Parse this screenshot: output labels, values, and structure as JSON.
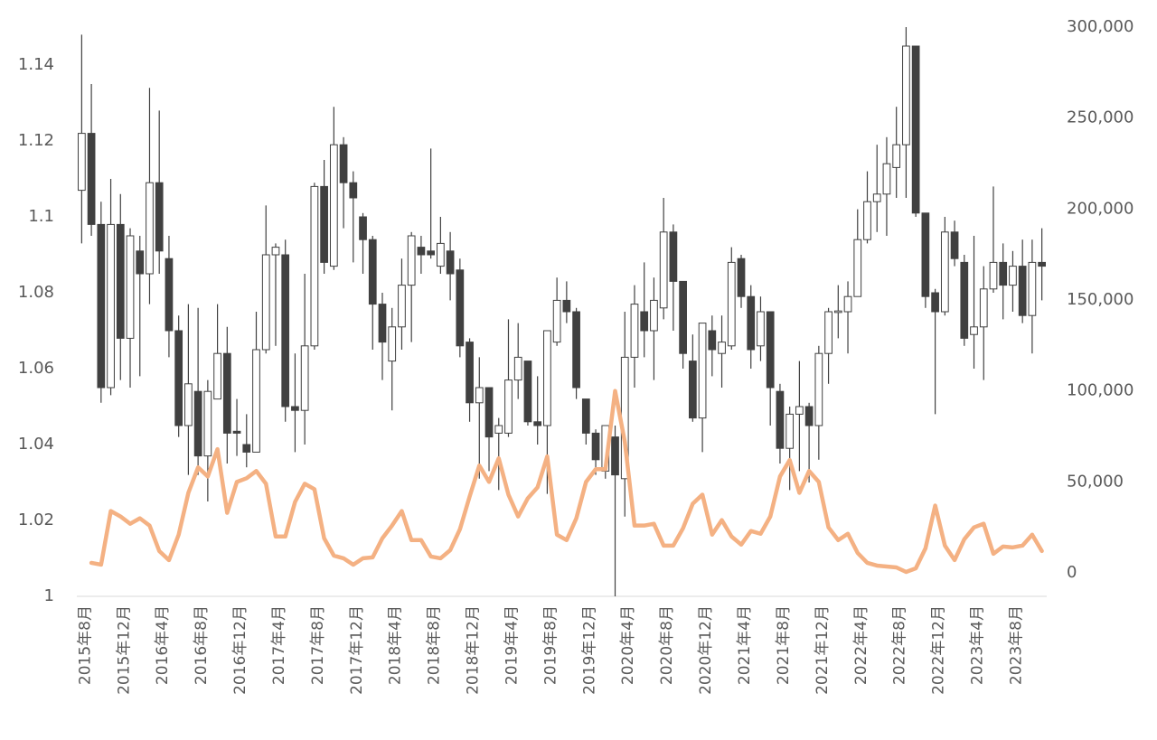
{
  "chart_data": {
    "type": "candlestick",
    "categories": [
      "2015年8月",
      null,
      null,
      null,
      "2015年12月",
      null,
      null,
      null,
      "2016年4月",
      null,
      null,
      null,
      "2016年8月",
      null,
      null,
      null,
      "2016年12月",
      null,
      null,
      null,
      "2017年4月",
      null,
      null,
      null,
      "2017年8月",
      null,
      null,
      null,
      "2017年12月",
      null,
      null,
      null,
      "2018年4月",
      null,
      null,
      null,
      "2018年8月",
      null,
      null,
      null,
      "2018年12月",
      null,
      null,
      null,
      "2019年4月",
      null,
      null,
      null,
      "2019年8月",
      null,
      null,
      null,
      "2019年12月",
      null,
      null,
      null,
      "2020年4月",
      null,
      null,
      null,
      "2020年8月",
      null,
      null,
      null,
      "2020年12月",
      null,
      null,
      null,
      "2021年4月",
      null,
      null,
      null,
      "2021年8月",
      null,
      null,
      null,
      "2021年12月",
      null,
      null,
      null,
      "2022年4月",
      null,
      null,
      null,
      "2022年8月",
      null,
      null,
      null,
      "2022年12月",
      null,
      null,
      null,
      "2023年4月",
      null,
      null,
      null,
      "2023年8月",
      null,
      null,
      null
    ],
    "open": [
      1.107,
      1.122,
      1.098,
      1.055,
      1.098,
      1.068,
      1.091,
      1.085,
      1.109,
      1.089,
      1.07,
      1.045,
      1.054,
      1.037,
      1.052,
      1.064,
      1.0435,
      1.04,
      1.038,
      1.065,
      1.09,
      1.09,
      1.05,
      1.049,
      1.066,
      1.108,
      1.087,
      1.119,
      1.109,
      1.1,
      1.094,
      1.077,
      1.062,
      1.071,
      1.082,
      1.092,
      1.091,
      1.087,
      1.091,
      1.086,
      1.067,
      1.051,
      1.055,
      1.043,
      1.043,
      1.057,
      1.062,
      1.046,
      1.045,
      1.067,
      1.078,
      1.075,
      1.052,
      1.043,
      1.033,
      1.042,
      1.031,
      1.063,
      1.075,
      1.07,
      1.076,
      1.096,
      1.083,
      1.062,
      1.047,
      1.07,
      1.064,
      1.066,
      1.089,
      1.079,
      1.066,
      1.075,
      1.054,
      1.039,
      1.048,
      1.05,
      1.045,
      1.064,
      1.0748,
      1.075,
      1.079,
      1.094,
      1.104,
      1.106,
      1.113,
      1.119,
      1.145,
      1.101,
      1.08,
      1.075,
      1.096,
      1.088,
      1.069,
      1.071,
      1.081,
      1.088,
      1.082,
      1.087,
      1.074,
      1.088
    ],
    "high": [
      1.148,
      1.135,
      1.104,
      1.11,
      1.106,
      1.097,
      1.095,
      1.134,
      1.128,
      1.095,
      1.074,
      1.077,
      1.076,
      1.057,
      1.077,
      1.071,
      1.052,
      1.048,
      1.075,
      1.103,
      1.093,
      1.094,
      1.064,
      1.085,
      1.109,
      1.115,
      1.129,
      1.121,
      1.112,
      1.101,
      1.095,
      1.08,
      1.076,
      1.089,
      1.096,
      1.095,
      1.118,
      1.1,
      1.096,
      1.089,
      1.068,
      1.063,
      1.055,
      1.047,
      1.073,
      1.072,
      1.062,
      1.058,
      1.07,
      1.084,
      1.083,
      1.076,
      1.052,
      1.044,
      1.045,
      1.045,
      1.075,
      1.082,
      1.088,
      1.084,
      1.105,
      1.098,
      1.083,
      1.069,
      1.072,
      1.074,
      1.074,
      1.092,
      1.09,
      1.082,
      1.079,
      1.075,
      1.056,
      1.05,
      1.062,
      1.051,
      1.066,
      1.076,
      1.082,
      1.083,
      1.102,
      1.112,
      1.119,
      1.121,
      1.129,
      1.15,
      1.145,
      1.101,
      1.081,
      1.1,
      1.099,
      1.09,
      1.095,
      1.087,
      1.108,
      1.093,
      1.091,
      1.094,
      1.094,
      1.097
    ],
    "low": [
      1.093,
      1.095,
      1.051,
      1.053,
      1.057,
      1.055,
      1.058,
      1.077,
      1.085,
      1.063,
      1.042,
      1.032,
      1.032,
      1.025,
      1.052,
      1.035,
      1.037,
      1.034,
      1.038,
      1.064,
      1.066,
      1.046,
      1.038,
      1.04,
      1.065,
      1.085,
      1.086,
      1.097,
      1.088,
      1.085,
      1.065,
      1.057,
      1.049,
      1.065,
      1.067,
      1.085,
      1.089,
      1.085,
      1.078,
      1.063,
      1.046,
      1.031,
      1.033,
      1.028,
      1.042,
      1.052,
      1.045,
      1.04,
      1.027,
      1.066,
      1.072,
      1.052,
      1.04,
      1.032,
      1.031,
      1.0,
      1.021,
      1.055,
      1.063,
      1.057,
      1.073,
      1.07,
      1.06,
      1.046,
      1.038,
      1.058,
      1.055,
      1.065,
      1.076,
      1.06,
      1.062,
      1.045,
      1.035,
      1.028,
      1.033,
      1.03,
      1.036,
      1.056,
      1.068,
      1.064,
      1.079,
      1.093,
      1.096,
      1.095,
      1.105,
      1.105,
      1.1,
      1.076,
      1.048,
      1.074,
      1.087,
      1.066,
      1.06,
      1.057,
      1.08,
      1.073,
      1.075,
      1.072,
      1.064,
      1.078
    ],
    "close": [
      1.122,
      1.098,
      1.055,
      1.098,
      1.068,
      1.095,
      1.085,
      1.109,
      1.091,
      1.07,
      1.045,
      1.056,
      1.037,
      1.054,
      1.064,
      1.043,
      1.043,
      1.038,
      1.065,
      1.09,
      1.092,
      1.05,
      1.049,
      1.066,
      1.108,
      1.088,
      1.119,
      1.109,
      1.105,
      1.094,
      1.077,
      1.067,
      1.071,
      1.082,
      1.095,
      1.09,
      1.09,
      1.093,
      1.085,
      1.066,
      1.051,
      1.055,
      1.042,
      1.045,
      1.057,
      1.063,
      1.046,
      1.045,
      1.07,
      1.078,
      1.075,
      1.055,
      1.043,
      1.036,
      1.045,
      1.032,
      1.063,
      1.077,
      1.07,
      1.078,
      1.096,
      1.083,
      1.064,
      1.047,
      1.072,
      1.065,
      1.067,
      1.088,
      1.079,
      1.065,
      1.075,
      1.055,
      1.039,
      1.048,
      1.05,
      1.045,
      1.064,
      1.075,
      1.0752,
      1.079,
      1.094,
      1.104,
      1.106,
      1.114,
      1.119,
      1.145,
      1.101,
      1.079,
      1.075,
      1.096,
      1.089,
      1.068,
      1.071,
      1.081,
      1.088,
      1.082,
      1.087,
      1.074,
      1.088,
      1.087
    ],
    "up_color": "#ffffff",
    "down_color": "#404040",
    "ylim": [
      1,
      1.15
    ],
    "yticks": [
      1,
      1.02,
      1.04,
      1.06,
      1.08,
      1.1,
      1.12,
      1.14
    ],
    "y2lim": [
      -12900,
      300000
    ],
    "y2ticks": [
      {
        "value": 0,
        "label": "0"
      },
      {
        "value": 50000,
        "label": "50,000"
      },
      {
        "value": 100000,
        "label": "100,000"
      },
      {
        "value": 150000,
        "label": "150,000"
      },
      {
        "value": 200000,
        "label": "200,000"
      },
      {
        "value": 250000,
        "label": "250,000"
      },
      {
        "value": 300000,
        "label": "300,000"
      }
    ],
    "series": [
      {
        "type": "line",
        "axis": "y2",
        "color": "#f4b183",
        "values": [
          null,
          5500,
          4500,
          34000,
          31000,
          27000,
          30000,
          26000,
          12000,
          7000,
          21000,
          44000,
          58000,
          53000,
          68000,
          33000,
          50000,
          52000,
          56000,
          49000,
          20000,
          20000,
          39000,
          49000,
          46000,
          19000,
          9500,
          8000,
          4500,
          8000,
          8500,
          19000,
          26000,
          34000,
          18000,
          18000,
          9000,
          8000,
          12500,
          24000,
          42000,
          59000,
          50000,
          63000,
          43000,
          31000,
          41000,
          47000,
          64000,
          21000,
          18000,
          30000,
          50000,
          57000,
          57000,
          100000,
          72000,
          26000,
          26000,
          27000,
          15000,
          15000,
          24500,
          38000,
          43000,
          21000,
          29000,
          20000,
          15500,
          23000,
          21500,
          31000,
          53000,
          62000,
          44000,
          56000,
          50000,
          25000,
          18000,
          21500,
          11000,
          5500,
          4000,
          3500,
          3000,
          500,
          2500,
          13500,
          37000,
          15000,
          7000,
          18500,
          25000,
          27000,
          10500,
          14500,
          14000,
          15000,
          21000,
          12000
        ]
      }
    ]
  }
}
